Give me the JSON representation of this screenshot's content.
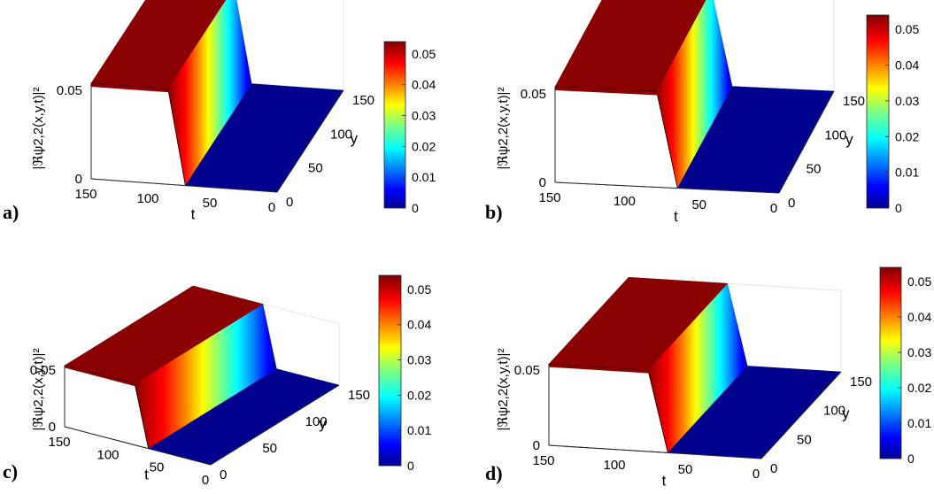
{
  "chart_data": [
    {
      "type": "surface",
      "panel": "a)",
      "x_label": "t",
      "y_label": "y",
      "z_label": "|ℜψ2,2(x,y,t)|²",
      "x_ticks": [
        "150",
        "100",
        "50",
        "0"
      ],
      "y_ticks": [
        "0",
        "50",
        "100",
        "150"
      ],
      "z_ticks": [
        "0",
        "0.05"
      ],
      "colorbar_ticks": [
        "0",
        "0.01",
        "0.02",
        "0.03",
        "0.04",
        "0.05"
      ],
      "xlim": [
        0,
        150
      ],
      "ylim": [
        0,
        150
      ],
      "zlim": [
        0,
        0.054
      ],
      "front_z_max": 0.054,
      "kink_t": 88
    },
    {
      "type": "surface",
      "panel": "b)",
      "x_label": "t",
      "y_label": "y",
      "z_label": "|ℜψ2,2(x,y,t)|²",
      "x_ticks": [
        "150",
        "100",
        "50",
        "0"
      ],
      "y_ticks": [
        "0",
        "50",
        "100",
        "150"
      ],
      "z_ticks": [
        "0",
        "0.05"
      ],
      "colorbar_ticks": [
        "0",
        "0.01",
        "0.02",
        "0.03",
        "0.04",
        "0.05"
      ],
      "xlim": [
        0,
        150
      ],
      "ylim": [
        0,
        150
      ],
      "zlim": [
        0,
        0.054
      ],
      "front_z_max": 0.054,
      "kink_t": 82
    },
    {
      "type": "surface",
      "panel": "c)",
      "x_label": "t",
      "y_label": "y",
      "z_label": "|ℜψ2,2(x,y,t)|²",
      "x_ticks": [
        "150",
        "100",
        "50",
        "0"
      ],
      "y_ticks": [
        "0",
        "50",
        "100",
        "150"
      ],
      "z_ticks": [
        "0",
        "0.05"
      ],
      "colorbar_ticks": [
        "0",
        "0.01",
        "0.02",
        "0.03",
        "0.04",
        "0.05"
      ],
      "xlim": [
        0,
        150
      ],
      "ylim": [
        0,
        150
      ],
      "zlim": [
        0,
        0.054
      ],
      "front_z_max": 0.054,
      "kink_t": 78
    },
    {
      "type": "surface",
      "panel": "d)",
      "x_label": "t",
      "y_label": "y",
      "z_label": "|ℜψ2,2(x,y,t)|²",
      "x_ticks": [
        "150",
        "100",
        "50",
        "0"
      ],
      "y_ticks": [
        "0",
        "50",
        "100",
        "150"
      ],
      "z_ticks": [
        "0",
        "0.05"
      ],
      "colorbar_ticks": [
        "0",
        "0.01",
        "0.02",
        "0.03",
        "0.04",
        "0.05"
      ],
      "xlim": [
        0,
        150
      ],
      "ylim": [
        0,
        150
      ],
      "zlim": [
        0,
        0.054
      ],
      "front_z_max": 0.054,
      "kink_t": 80
    }
  ],
  "colormap": [
    "#00008f",
    "#0000ff",
    "#0080ff",
    "#00ffff",
    "#80ff80",
    "#ffff00",
    "#ff8000",
    "#ff0000",
    "#800000"
  ]
}
